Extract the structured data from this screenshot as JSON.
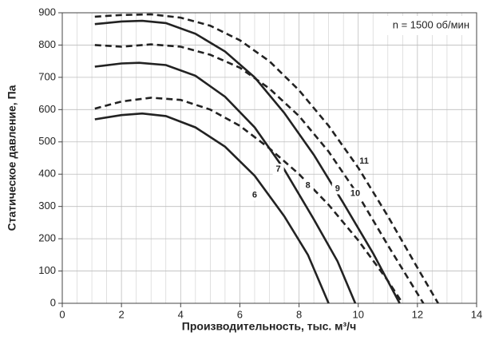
{
  "chart_data": {
    "type": "line",
    "x_label": "Производительность, тыс. м³/ч",
    "y_label": "Статическое давление, Па",
    "annotation": "n = 1500 об/мин",
    "xlim": [
      0,
      14
    ],
    "xticks": [
      0,
      2,
      4,
      6,
      8,
      10,
      12,
      14
    ],
    "ylim": [
      0,
      900
    ],
    "yticks": [
      0,
      100,
      200,
      300,
      400,
      500,
      600,
      700,
      800,
      900
    ],
    "grid": true,
    "series": [
      {
        "name": "6",
        "color": "#222222",
        "dashed": false,
        "x": [
          1.1,
          2,
          2.7,
          3.5,
          4.5,
          5.5,
          6.5,
          7.5,
          8.3,
          9.0
        ],
        "values": [
          570,
          583,
          588,
          580,
          545,
          485,
          395,
          270,
          150,
          0
        ]
      },
      {
        "name": "7",
        "color": "#222222",
        "dashed": false,
        "x": [
          1.1,
          2,
          2.6,
          3.5,
          4.5,
          5.5,
          6.5,
          7.5,
          8.5,
          9.3,
          9.9
        ],
        "values": [
          733,
          743,
          745,
          738,
          705,
          640,
          545,
          415,
          260,
          130,
          0
        ]
      },
      {
        "name": "8",
        "color": "#222222",
        "dashed": true,
        "x": [
          1.1,
          2,
          3,
          4,
          5,
          6,
          7,
          8,
          9,
          10,
          11,
          11.5
        ],
        "values": [
          603,
          625,
          637,
          630,
          600,
          550,
          480,
          400,
          305,
          195,
          70,
          0
        ]
      },
      {
        "name": "9",
        "color": "#222222",
        "dashed": false,
        "x": [
          1.1,
          2,
          2.7,
          3.5,
          4.5,
          5.5,
          6.5,
          7.5,
          8.5,
          9.5,
          10.5,
          11.4
        ],
        "values": [
          865,
          873,
          875,
          868,
          835,
          780,
          700,
          590,
          460,
          310,
          155,
          0
        ]
      },
      {
        "name": "10",
        "color": "#222222",
        "dashed": true,
        "x": [
          1.1,
          2,
          3,
          4,
          5,
          6,
          7,
          8,
          9,
          10,
          11,
          12.2
        ],
        "values": [
          800,
          795,
          802,
          795,
          770,
          730,
          665,
          580,
          470,
          335,
          180,
          0
        ]
      },
      {
        "name": "11",
        "color": "#222222",
        "dashed": true,
        "x": [
          1.1,
          2,
          3,
          4,
          5,
          6,
          7,
          8,
          9,
          10,
          11,
          12,
          12.7
        ],
        "values": [
          888,
          893,
          895,
          885,
          860,
          815,
          750,
          660,
          550,
          420,
          270,
          110,
          0
        ]
      }
    ]
  }
}
